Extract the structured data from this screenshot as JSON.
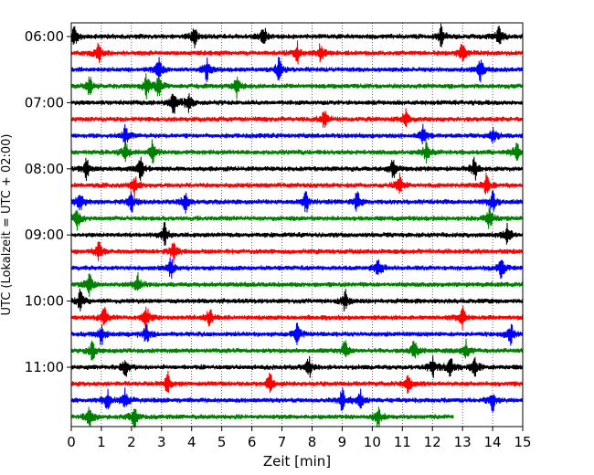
{
  "chart_data": {
    "type": "line",
    "title": "",
    "xlabel": "Zeit  [min]",
    "ylabel": "UTC (Lokalzeit = UTC + 02:00)",
    "xlim": [
      0,
      15
    ],
    "x_ticks": [
      "0",
      "1",
      "2",
      "3",
      "4",
      "5",
      "6",
      "7",
      "8",
      "9",
      "10",
      "11",
      "12",
      "13",
      "14",
      "15"
    ],
    "y_tick_labels": [
      "06:00",
      "07:00",
      "08:00",
      "09:00",
      "10:00",
      "11:00"
    ],
    "grid": "vertical dotted",
    "trace_colors": [
      "#000000",
      "#ff0000",
      "#0000ff",
      "#008000"
    ],
    "traces": [
      {
        "start": "06:00",
        "end_min": 15,
        "events": [
          0.1,
          4.1,
          6.4,
          12.3,
          14.2
        ]
      },
      {
        "start": "06:15",
        "end_min": 15,
        "events": [
          0.9,
          7.5,
          8.3,
          13.0
        ]
      },
      {
        "start": "06:30",
        "end_min": 15,
        "events": [
          2.9,
          4.5,
          6.9,
          13.6
        ]
      },
      {
        "start": "06:45",
        "end_min": 15,
        "events": [
          0.6,
          2.5,
          2.9,
          5.5
        ]
      },
      {
        "start": "07:00",
        "end_min": 15,
        "events": [
          3.4,
          3.9
        ]
      },
      {
        "start": "07:15",
        "end_min": 15,
        "events": [
          8.4,
          11.1
        ]
      },
      {
        "start": "07:30",
        "end_min": 15,
        "events": [
          1.8,
          11.7,
          14.0
        ]
      },
      {
        "start": "07:45",
        "end_min": 15,
        "events": [
          1.8,
          2.7,
          11.8,
          14.8
        ]
      },
      {
        "start": "08:00",
        "end_min": 15,
        "events": [
          0.5,
          2.3,
          10.7,
          13.4
        ]
      },
      {
        "start": "08:15",
        "end_min": 15,
        "events": [
          2.1,
          10.9,
          13.8
        ]
      },
      {
        "start": "08:30",
        "end_min": 15,
        "events": [
          0.3,
          2.0,
          3.8,
          7.8,
          9.5,
          14.0
        ]
      },
      {
        "start": "08:45",
        "end_min": 15,
        "events": [
          0.2,
          13.9
        ]
      },
      {
        "start": "09:00",
        "end_min": 15,
        "events": [
          3.1,
          14.5
        ]
      },
      {
        "start": "09:15",
        "end_min": 15,
        "events": [
          0.9,
          3.4
        ]
      },
      {
        "start": "09:30",
        "end_min": 15,
        "events": [
          3.3,
          10.2,
          14.3
        ]
      },
      {
        "start": "09:45",
        "end_min": 15,
        "events": [
          0.6,
          2.2
        ]
      },
      {
        "start": "10:00",
        "end_min": 15,
        "events": [
          0.3,
          9.1
        ]
      },
      {
        "start": "10:15",
        "end_min": 15,
        "events": [
          1.1,
          2.5,
          4.6,
          13.0
        ]
      },
      {
        "start": "10:30",
        "end_min": 15,
        "events": [
          1.0,
          2.5,
          7.5,
          14.6
        ]
      },
      {
        "start": "10:45",
        "end_min": 15,
        "events": [
          0.7,
          9.1,
          11.4,
          13.1
        ]
      },
      {
        "start": "11:00",
        "end_min": 15,
        "events": [
          1.8,
          7.9,
          12.0,
          12.6,
          13.4
        ]
      },
      {
        "start": "11:15",
        "end_min": 15,
        "events": [
          3.2,
          6.6,
          11.2
        ]
      },
      {
        "start": "11:30",
        "end_min": 15,
        "events": [
          1.2,
          1.8,
          9.0,
          9.6,
          14.0
        ]
      },
      {
        "start": "11:45",
        "end_min": 12.7,
        "events": [
          0.6,
          2.1,
          10.2
        ]
      }
    ]
  }
}
